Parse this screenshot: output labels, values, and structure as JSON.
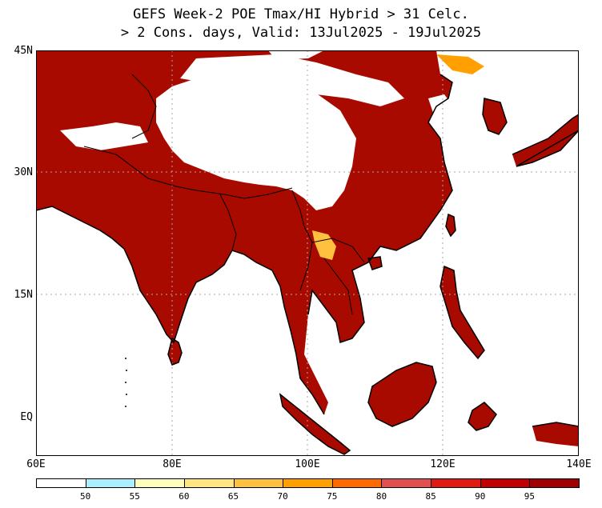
{
  "title": {
    "line1": "GEFS Week-2 POE Tmax/HI Hybrid > 31 Celc.",
    "line2": "> 2 Cons. days, Valid: 13Jul2025 - 19Jul2025"
  },
  "axes": {
    "lat_labels": [
      "45N",
      "30N",
      "15N",
      "EQ"
    ],
    "lon_labels": [
      "60E",
      "80E",
      "100E",
      "120E",
      "140E"
    ]
  },
  "colorbar": {
    "labels": [
      "50",
      "55",
      "60",
      "65",
      "70",
      "75",
      "80",
      "85",
      "90",
      "95"
    ],
    "colors": [
      "#ffffff",
      "#aaeeff",
      "#ffffbb",
      "#ffe680",
      "#ffc040",
      "#ffa000",
      "#ff6a00",
      "#e05050",
      "#e01a10",
      "#c00000",
      "#a00000"
    ]
  },
  "colors": {
    "probability_fill": "#a80a00",
    "land_no_signal": "#ffffff",
    "frame": "#000000",
    "grid": "#aaaaaa"
  }
}
